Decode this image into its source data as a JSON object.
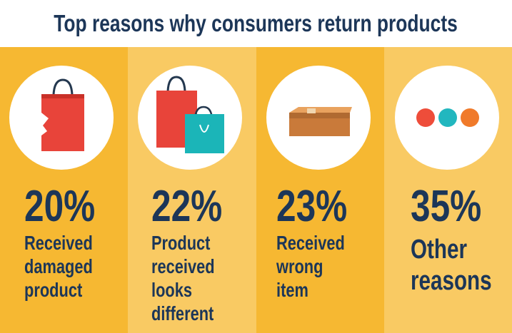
{
  "header": {
    "title": "Top reasons why consumers return products"
  },
  "reasons": [
    {
      "stat": "20%",
      "label_lines": [
        "Received",
        "damaged",
        "product"
      ]
    },
    {
      "stat": "22%",
      "label_lines": [
        "Product",
        "received",
        "looks",
        "different"
      ]
    },
    {
      "stat": "23%",
      "label_lines": [
        "Received",
        "wrong",
        "item"
      ]
    },
    {
      "stat": "35%",
      "label_lines": [
        "Other",
        "reasons"
      ]
    }
  ]
}
